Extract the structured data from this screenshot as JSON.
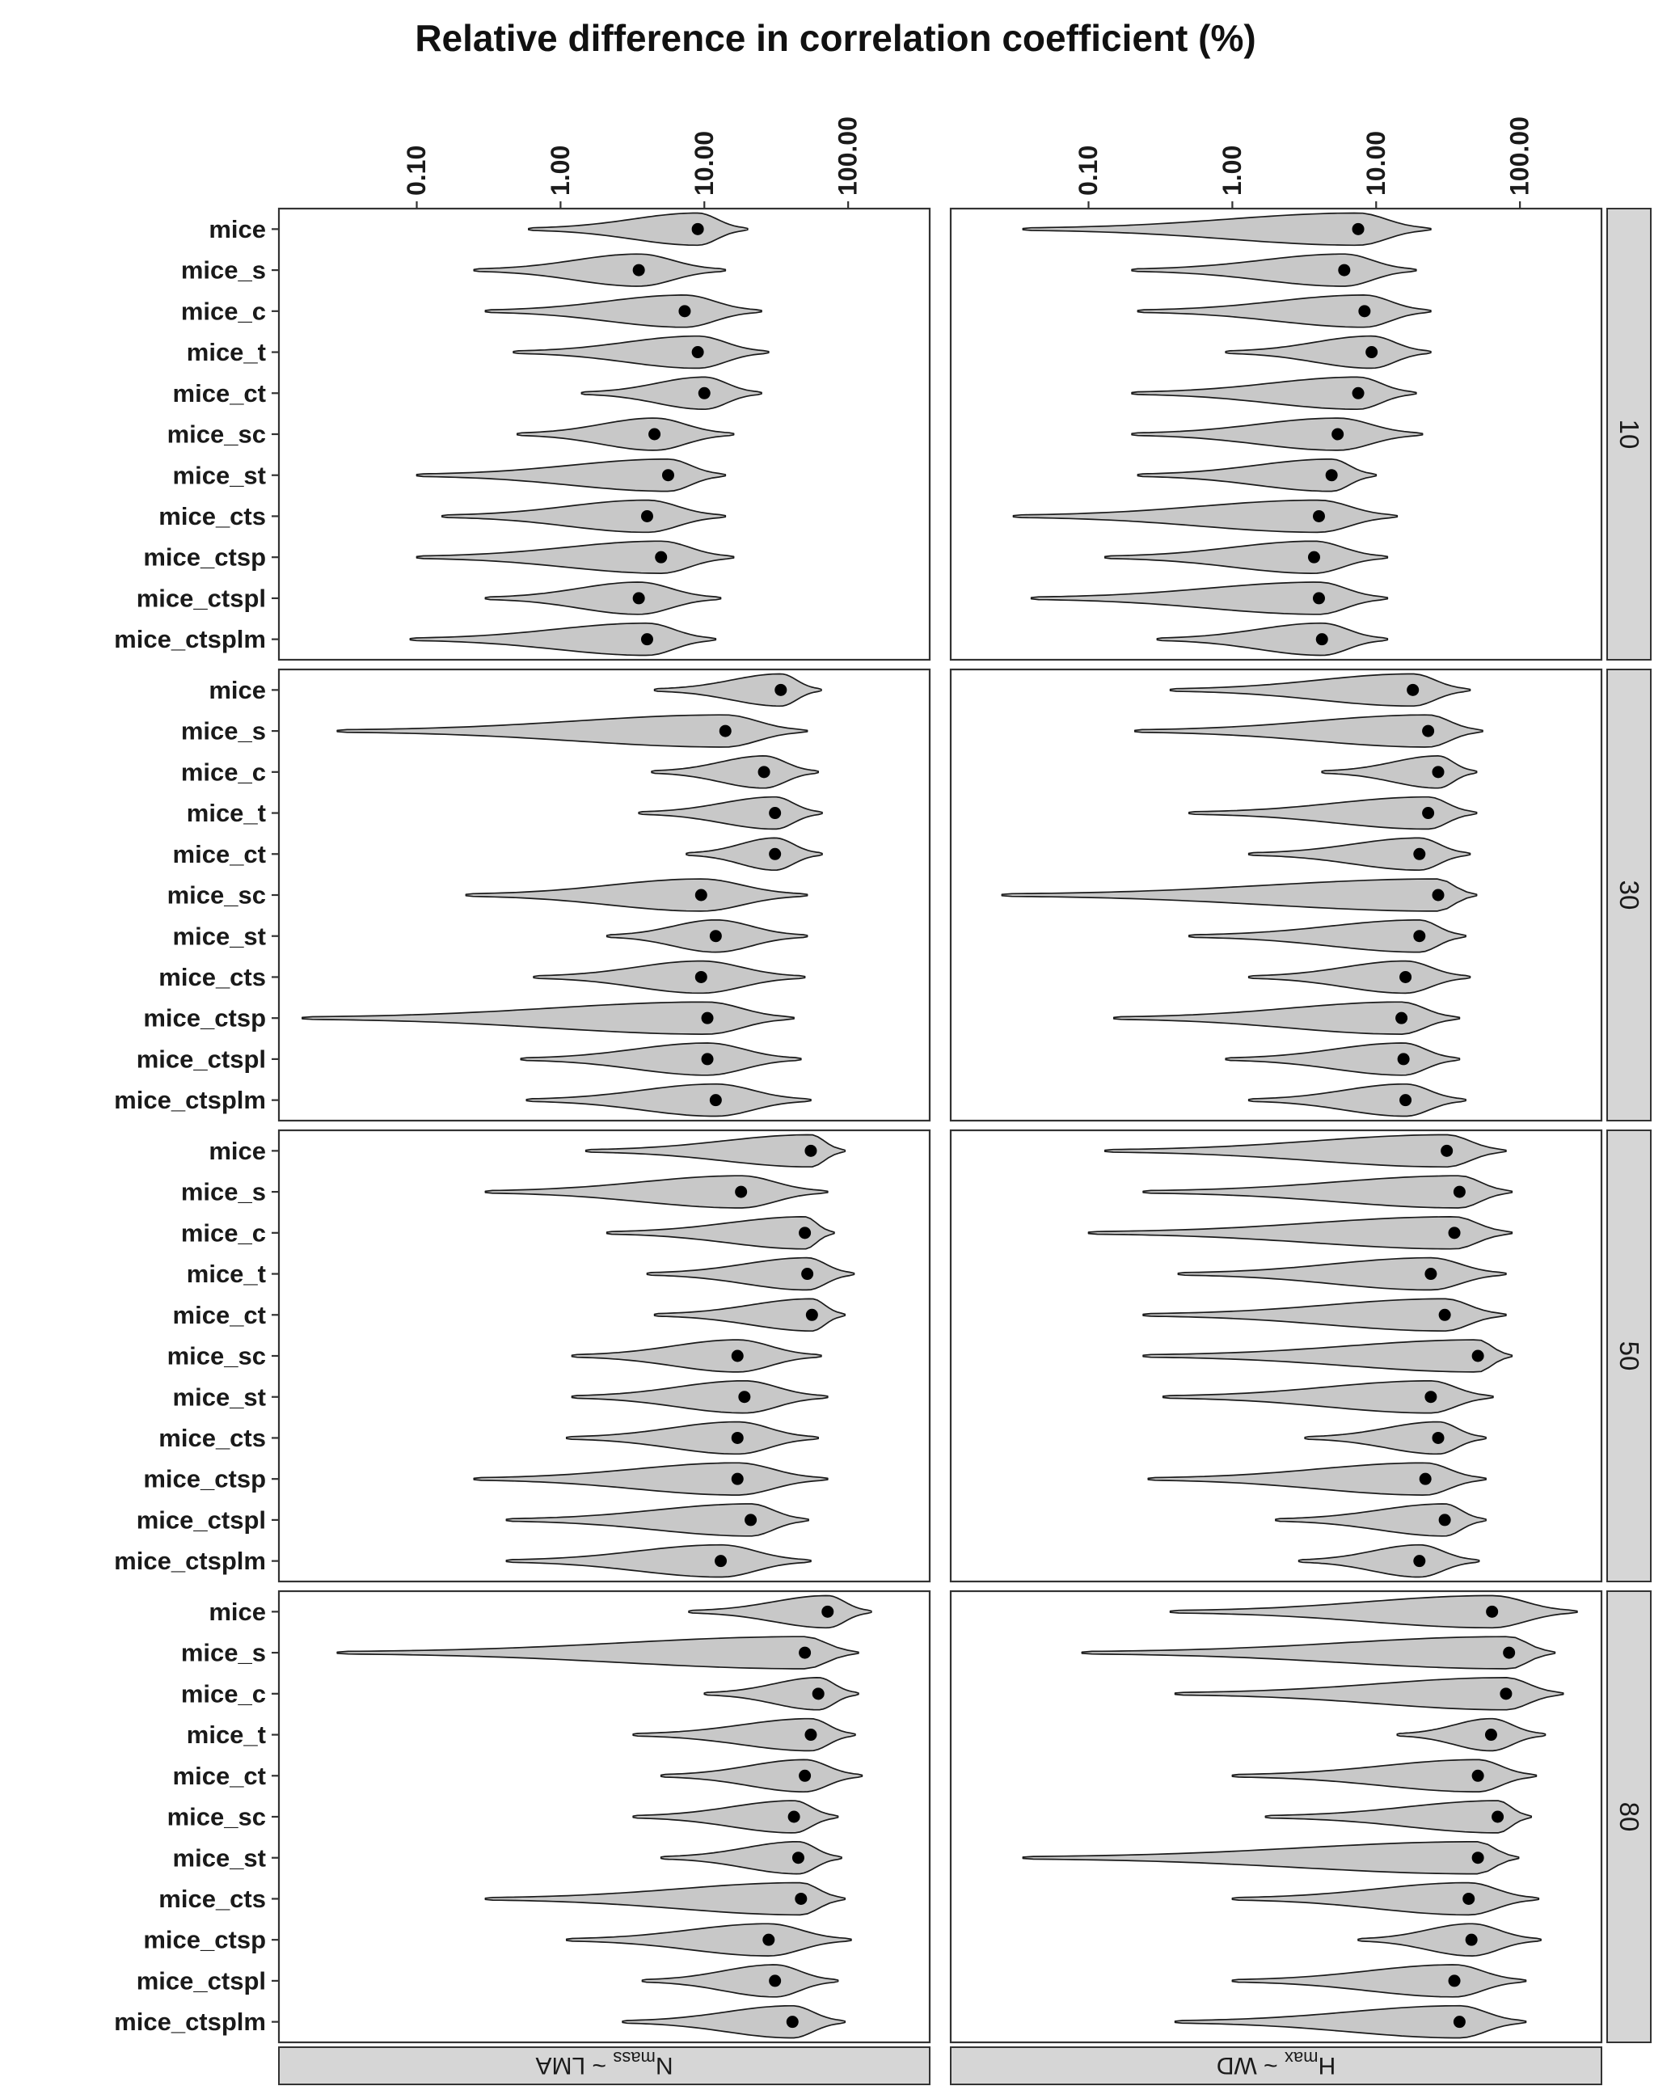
{
  "chart_data": {
    "type": "violin",
    "title": "Relative difference in correlation coefficient (%)",
    "x_scale": "log10",
    "x_ticks": [
      "0.10",
      "1.00",
      "10.00",
      "100.00"
    ],
    "x_tick_values": [
      0.1,
      1,
      10,
      100
    ],
    "xlim": [
      0.011,
      369
    ],
    "legend": "none",
    "grid": "off",
    "methods": [
      "mice",
      "mice_s",
      "mice_c",
      "mice_t",
      "mice_ct",
      "mice_sc",
      "mice_st",
      "mice_cts",
      "mice_ctsp",
      "mice_ctspl",
      "mice_ctsplm"
    ],
    "row_facets": [
      "10",
      "30",
      "50",
      "80"
    ],
    "col_facets": [
      {
        "base": "N",
        "sub": "mass",
        "rest": " ~ LMA"
      },
      {
        "base": "H",
        "sub": "max",
        "rest": " ~ WD"
      }
    ],
    "violin_format": [
      "min",
      "point",
      "max"
    ],
    "panels": [
      {
        "row": "10",
        "col": "Nmass ~ LMA",
        "violins": [
          [
            0.6,
            9,
            20
          ],
          [
            0.25,
            3.5,
            14
          ],
          [
            0.3,
            7.3,
            25
          ],
          [
            0.47,
            9,
            28
          ],
          [
            1.4,
            10,
            25
          ],
          [
            0.5,
            4.5,
            16
          ],
          [
            0.1,
            5.6,
            14
          ],
          [
            0.15,
            4,
            14
          ],
          [
            0.1,
            5,
            16
          ],
          [
            0.3,
            3.5,
            13
          ],
          [
            0.09,
            4,
            12
          ]
        ]
      },
      {
        "row": "10",
        "col": "Hmax ~ WD",
        "violins": [
          [
            0.035,
            7.5,
            24
          ],
          [
            0.2,
            6,
            19
          ],
          [
            0.22,
            8.3,
            24
          ],
          [
            0.9,
            9.3,
            24
          ],
          [
            0.2,
            7.5,
            19
          ],
          [
            0.2,
            5.4,
            21
          ],
          [
            0.22,
            4.9,
            10
          ],
          [
            0.03,
            4,
            14
          ],
          [
            0.13,
            3.7,
            12
          ],
          [
            0.04,
            4,
            12
          ],
          [
            0.3,
            4.2,
            12
          ]
        ]
      },
      {
        "row": "30",
        "col": "Nmass ~ LMA",
        "violins": [
          [
            4.5,
            34,
            65
          ],
          [
            0.028,
            14,
            52
          ],
          [
            4.3,
            26,
            62
          ],
          [
            3.5,
            31,
            66
          ],
          [
            7.5,
            31,
            66
          ],
          [
            0.22,
            9.5,
            52
          ],
          [
            2.1,
            12,
            52
          ],
          [
            0.65,
            9.5,
            50
          ],
          [
            0.016,
            10.5,
            42
          ],
          [
            0.53,
            10.5,
            47
          ],
          [
            0.58,
            12,
            55
          ]
        ]
      },
      {
        "row": "30",
        "col": "Hmax ~ WD",
        "violins": [
          [
            0.37,
            18,
            45
          ],
          [
            0.21,
            23,
            55
          ],
          [
            4.2,
            27,
            50
          ],
          [
            0.5,
            23,
            50
          ],
          [
            1.3,
            20,
            45
          ],
          [
            0.025,
            27,
            50
          ],
          [
            0.5,
            20,
            42
          ],
          [
            1.3,
            16,
            45
          ],
          [
            0.15,
            15,
            38
          ],
          [
            0.9,
            15.5,
            38
          ],
          [
            1.3,
            16,
            42
          ]
        ]
      },
      {
        "row": "50",
        "col": "Nmass ~ LMA",
        "violins": [
          [
            1.5,
            55,
            95
          ],
          [
            0.3,
            18,
            72
          ],
          [
            2.1,
            50,
            80
          ],
          [
            4,
            52,
            110
          ],
          [
            4.5,
            56,
            95
          ],
          [
            1.2,
            17,
            65
          ],
          [
            1.2,
            19,
            72
          ],
          [
            1.1,
            17,
            62
          ],
          [
            0.25,
            17,
            72
          ],
          [
            0.42,
            21,
            53
          ],
          [
            0.42,
            13,
            55
          ]
        ]
      },
      {
        "row": "50",
        "col": "Hmax ~ WD",
        "violins": [
          [
            0.13,
            31,
            80
          ],
          [
            0.24,
            38,
            88
          ],
          [
            0.1,
            35,
            88
          ],
          [
            0.42,
            24,
            80
          ],
          [
            0.24,
            30,
            80
          ],
          [
            0.24,
            51,
            88
          ],
          [
            0.33,
            24,
            65
          ],
          [
            3.2,
            27,
            58
          ],
          [
            0.26,
            22,
            58
          ],
          [
            2,
            30,
            58
          ],
          [
            2.9,
            20,
            52
          ]
        ]
      },
      {
        "row": "80",
        "col": "Nmass ~ LMA",
        "violins": [
          [
            7.8,
            72,
            145
          ],
          [
            0.028,
            50,
            118
          ],
          [
            10,
            62,
            118
          ],
          [
            3.2,
            55,
            112
          ],
          [
            5,
            50,
            125
          ],
          [
            3.2,
            42,
            85
          ],
          [
            5,
            45,
            90
          ],
          [
            0.3,
            47,
            95
          ],
          [
            1.1,
            28,
            105
          ],
          [
            3.7,
            31,
            85
          ],
          [
            2.7,
            41,
            95
          ]
        ]
      },
      {
        "row": "80",
        "col": "Hmax ~ WD",
        "violins": [
          [
            0.37,
            64,
            250
          ],
          [
            0.09,
            84,
            175
          ],
          [
            0.4,
            80,
            200
          ],
          [
            14,
            63,
            150
          ],
          [
            1,
            51,
            130
          ],
          [
            1.7,
            70,
            120
          ],
          [
            0.035,
            51,
            98
          ],
          [
            1,
            44,
            135
          ],
          [
            7.5,
            46,
            140
          ],
          [
            1,
            35,
            110
          ],
          [
            0.4,
            38,
            110
          ]
        ]
      }
    ],
    "colors": {
      "violin_fill": "#c8c8c8",
      "violin_stroke": "#1a1a1a",
      "point": "#000000",
      "strip_fill": "#d6d6d6",
      "panel_border": "#333333",
      "axis_text": "#1a1a1a"
    }
  }
}
